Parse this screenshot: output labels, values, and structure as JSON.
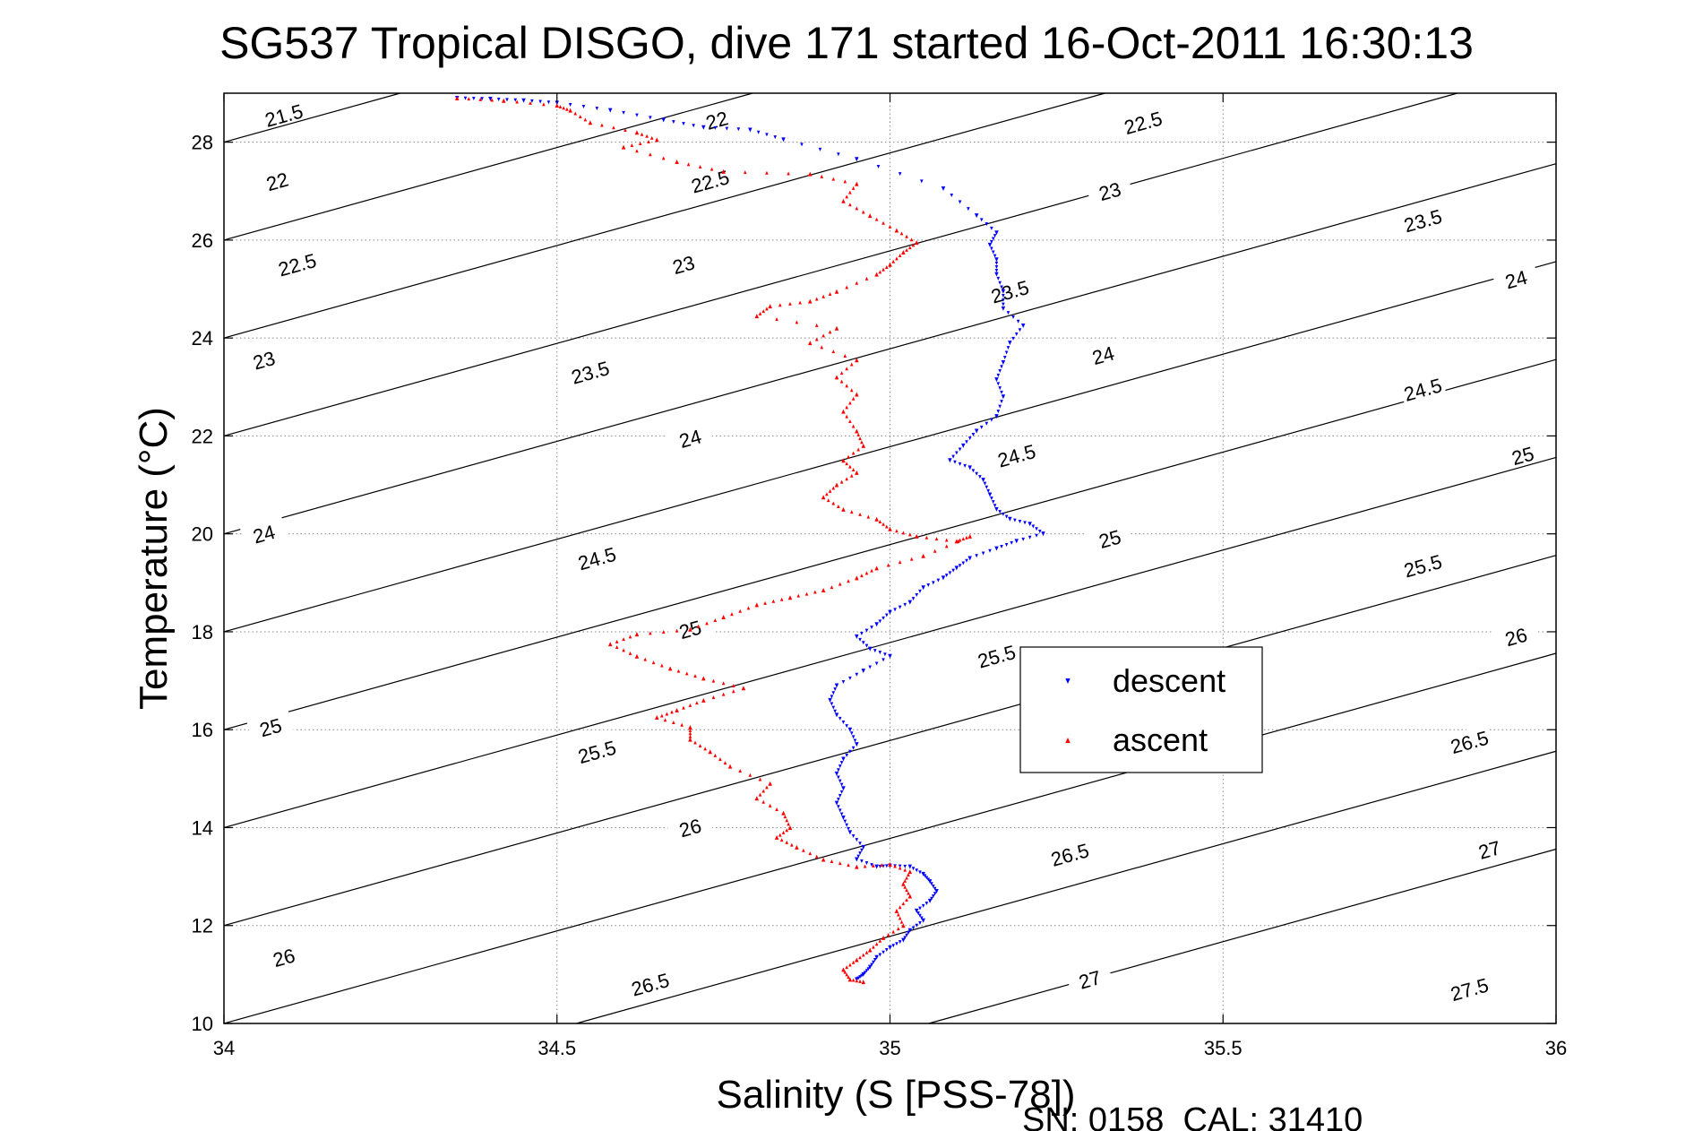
{
  "chart_data": {
    "type": "scatter",
    "title": "SG537 Tropical DISGO, dive 171 started 16-Oct-2011 16:30:13",
    "xlabel": "Salinity (S [PSS-78])",
    "ylabel": "Temperature (°C)",
    "xlim": [
      34,
      36
    ],
    "ylim": [
      10,
      29
    ],
    "grid": true,
    "legend_position": "center-right",
    "x_ticks": [
      "34",
      "34.5",
      "35",
      "35.5",
      "36"
    ],
    "y_ticks": [
      "10",
      "12",
      "14",
      "16",
      "18",
      "20",
      "22",
      "24",
      "26",
      "28"
    ],
    "footer": "SN: 0158  CAL: 31410",
    "density_contours": {
      "levels": [
        "21.5",
        "22",
        "22.5",
        "23",
        "23.5",
        "24",
        "24.5",
        "25",
        "25.5",
        "26",
        "26.5",
        "27",
        "27.5"
      ],
      "labels": [
        {
          "t": "21.5",
          "s": 34.09,
          "T": 28.55
        },
        {
          "t": "22",
          "s": 34.74,
          "T": 28.45
        },
        {
          "t": "22.5",
          "s": 35.38,
          "T": 28.4
        },
        {
          "t": "22",
          "s": 34.08,
          "T": 27.2
        },
        {
          "t": "22.5",
          "s": 34.73,
          "T": 27.2
        },
        {
          "t": "23",
          "s": 35.33,
          "T": 27.0
        },
        {
          "t": "23.5",
          "s": 35.8,
          "T": 26.4
        },
        {
          "t": "22.5",
          "s": 34.11,
          "T": 25.5
        },
        {
          "t": "23",
          "s": 34.69,
          "T": 25.5
        },
        {
          "t": "23.5",
          "s": 35.18,
          "T": 24.95
        },
        {
          "t": "24",
          "s": 35.94,
          "T": 25.2
        },
        {
          "t": "23",
          "s": 34.06,
          "T": 23.55
        },
        {
          "t": "23.5",
          "s": 34.55,
          "T": 23.3
        },
        {
          "t": "24",
          "s": 35.32,
          "T": 23.65
        },
        {
          "t": "24.5",
          "s": 35.8,
          "T": 22.95
        },
        {
          "t": "24",
          "s": 34.7,
          "T": 21.95
        },
        {
          "t": "24.5",
          "s": 35.19,
          "T": 21.6
        },
        {
          "t": "25",
          "s": 35.95,
          "T": 21.6
        },
        {
          "t": "24",
          "s": 34.06,
          "T": 20.0
        },
        {
          "t": "24.5",
          "s": 34.56,
          "T": 19.5
        },
        {
          "t": "25",
          "s": 35.33,
          "T": 19.9
        },
        {
          "t": "25.5",
          "s": 35.8,
          "T": 19.35
        },
        {
          "t": "25",
          "s": 34.7,
          "T": 18.05
        },
        {
          "t": "25.5",
          "s": 35.16,
          "T": 17.5
        },
        {
          "t": "26",
          "s": 35.94,
          "T": 17.9
        },
        {
          "t": "25",
          "s": 34.07,
          "T": 16.05
        },
        {
          "t": "25.5",
          "s": 34.56,
          "T": 15.55
        },
        {
          "t": "26",
          "s": 34.7,
          "T": 14.0
        },
        {
          "t": "26.5",
          "s": 35.27,
          "T": 13.45
        },
        {
          "t": "26.5",
          "s": 35.87,
          "T": 15.75
        },
        {
          "t": "27",
          "s": 35.9,
          "T": 13.55
        },
        {
          "t": "26",
          "s": 34.09,
          "T": 11.35
        },
        {
          "t": "26.5",
          "s": 34.64,
          "T": 10.8
        },
        {
          "t": "27",
          "s": 35.3,
          "T": 10.9
        },
        {
          "t": "27.5",
          "s": 35.87,
          "T": 10.7
        }
      ]
    },
    "series": [
      {
        "name": "descent",
        "color": "#0000ff",
        "marker": "triangle-down",
        "points": [
          [
            34.35,
            28.9
          ],
          [
            34.4,
            28.88
          ],
          [
            34.45,
            28.85
          ],
          [
            34.5,
            28.8
          ],
          [
            34.58,
            28.65
          ],
          [
            34.66,
            28.45
          ],
          [
            34.72,
            28.3
          ],
          [
            34.79,
            28.25
          ],
          [
            34.84,
            28.05
          ],
          [
            34.95,
            27.65
          ],
          [
            35.08,
            27.05
          ],
          [
            35.13,
            26.5
          ],
          [
            35.16,
            26.15
          ],
          [
            35.15,
            25.9
          ],
          [
            35.16,
            25.6
          ],
          [
            35.16,
            25.3
          ],
          [
            35.17,
            24.95
          ],
          [
            35.17,
            24.6
          ],
          [
            35.2,
            24.25
          ],
          [
            35.18,
            23.9
          ],
          [
            35.17,
            23.5
          ],
          [
            35.16,
            23.15
          ],
          [
            35.17,
            22.8
          ],
          [
            35.16,
            22.4
          ],
          [
            35.13,
            22.1
          ],
          [
            35.11,
            21.8
          ],
          [
            35.09,
            21.5
          ],
          [
            35.12,
            21.35
          ],
          [
            35.14,
            21.1
          ],
          [
            35.15,
            20.8
          ],
          [
            35.16,
            20.5
          ],
          [
            35.18,
            20.3
          ],
          [
            35.21,
            20.2
          ],
          [
            35.23,
            20.0
          ],
          [
            35.19,
            19.85
          ],
          [
            35.16,
            19.7
          ],
          [
            35.12,
            19.5
          ],
          [
            35.1,
            19.3
          ],
          [
            35.08,
            19.1
          ],
          [
            35.05,
            18.9
          ],
          [
            35.03,
            18.6
          ],
          [
            35.0,
            18.4
          ],
          [
            34.98,
            18.15
          ],
          [
            34.95,
            17.9
          ],
          [
            34.97,
            17.65
          ],
          [
            35.0,
            17.5
          ],
          [
            34.96,
            17.2
          ],
          [
            34.92,
            16.9
          ],
          [
            34.91,
            16.6
          ],
          [
            34.92,
            16.3
          ],
          [
            34.94,
            16.0
          ],
          [
            34.95,
            15.7
          ],
          [
            34.93,
            15.4
          ],
          [
            34.92,
            15.1
          ],
          [
            34.93,
            14.8
          ],
          [
            34.92,
            14.5
          ],
          [
            34.93,
            14.2
          ],
          [
            34.94,
            13.9
          ],
          [
            34.96,
            13.6
          ],
          [
            34.95,
            13.35
          ],
          [
            34.98,
            13.2
          ],
          [
            35.0,
            13.22
          ],
          [
            35.03,
            13.2
          ],
          [
            35.05,
            13.05
          ],
          [
            35.06,
            12.9
          ],
          [
            35.07,
            12.7
          ],
          [
            35.06,
            12.5
          ],
          [
            35.04,
            12.3
          ],
          [
            35.05,
            12.1
          ],
          [
            35.03,
            11.9
          ],
          [
            35.02,
            11.7
          ],
          [
            35.0,
            11.55
          ],
          [
            34.98,
            11.35
          ],
          [
            34.97,
            11.15
          ],
          [
            34.96,
            11.0
          ],
          [
            34.95,
            10.9
          ]
        ]
      },
      {
        "name": "ascent",
        "color": "#ff0000",
        "marker": "triangle-up",
        "points": [
          [
            34.35,
            28.9
          ],
          [
            34.42,
            28.85
          ],
          [
            34.5,
            28.75
          ],
          [
            34.52,
            28.65
          ],
          [
            34.55,
            28.4
          ],
          [
            34.62,
            28.2
          ],
          [
            34.65,
            28.05
          ],
          [
            34.6,
            27.9
          ],
          [
            34.68,
            27.6
          ],
          [
            34.75,
            27.4
          ],
          [
            34.88,
            27.35
          ],
          [
            34.95,
            27.15
          ],
          [
            34.93,
            26.8
          ],
          [
            34.97,
            26.5
          ],
          [
            35.01,
            26.2
          ],
          [
            35.04,
            25.95
          ],
          [
            35.02,
            25.75
          ],
          [
            35.0,
            25.5
          ],
          [
            34.98,
            25.3
          ],
          [
            34.92,
            24.95
          ],
          [
            34.88,
            24.75
          ],
          [
            34.82,
            24.65
          ],
          [
            34.8,
            24.45
          ],
          [
            34.92,
            24.2
          ],
          [
            34.88,
            23.9
          ],
          [
            34.95,
            23.55
          ],
          [
            34.92,
            23.2
          ],
          [
            34.95,
            22.85
          ],
          [
            34.93,
            22.5
          ],
          [
            34.95,
            22.1
          ],
          [
            34.96,
            21.8
          ],
          [
            34.93,
            21.5
          ],
          [
            34.95,
            21.25
          ],
          [
            34.92,
            21.0
          ],
          [
            34.9,
            20.75
          ],
          [
            34.93,
            20.5
          ],
          [
            34.98,
            20.3
          ],
          [
            35.0,
            20.1
          ],
          [
            35.04,
            19.95
          ],
          [
            35.1,
            19.85
          ],
          [
            35.12,
            19.95
          ],
          [
            35.05,
            19.55
          ],
          [
            34.98,
            19.3
          ],
          [
            34.95,
            19.1
          ],
          [
            34.9,
            18.85
          ],
          [
            34.85,
            18.7
          ],
          [
            34.8,
            18.55
          ],
          [
            34.75,
            18.3
          ],
          [
            34.7,
            18.05
          ],
          [
            34.62,
            17.95
          ],
          [
            34.58,
            17.75
          ],
          [
            34.62,
            17.5
          ],
          [
            34.67,
            17.25
          ],
          [
            34.72,
            17.05
          ],
          [
            34.78,
            16.85
          ],
          [
            34.72,
            16.6
          ],
          [
            34.68,
            16.4
          ],
          [
            34.65,
            16.25
          ],
          [
            34.7,
            16.05
          ],
          [
            34.7,
            15.8
          ],
          [
            34.73,
            15.55
          ],
          [
            34.76,
            15.25
          ],
          [
            34.82,
            14.9
          ],
          [
            34.8,
            14.6
          ],
          [
            34.84,
            14.3
          ],
          [
            34.85,
            14.0
          ],
          [
            34.83,
            13.8
          ],
          [
            34.86,
            13.6
          ],
          [
            34.9,
            13.35
          ],
          [
            34.95,
            13.2
          ],
          [
            35.0,
            13.25
          ],
          [
            35.03,
            13.1
          ],
          [
            35.02,
            12.85
          ],
          [
            35.03,
            12.6
          ],
          [
            35.01,
            12.3
          ],
          [
            35.02,
            12.0
          ],
          [
            34.99,
            11.75
          ],
          [
            34.97,
            11.5
          ],
          [
            34.95,
            11.3
          ],
          [
            34.93,
            11.1
          ],
          [
            34.94,
            10.9
          ],
          [
            34.96,
            10.85
          ]
        ]
      }
    ]
  }
}
